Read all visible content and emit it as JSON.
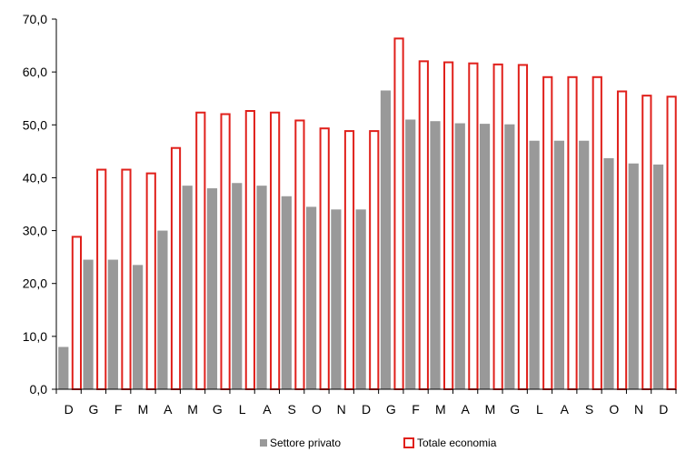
{
  "chart_data": {
    "type": "bar",
    "title": "",
    "xlabel": "",
    "ylabel": "",
    "ylim": [
      0,
      70
    ],
    "yticks": [
      "0,0",
      "10,0",
      "20,0",
      "30,0",
      "40,0",
      "50,0",
      "60,0",
      "70,0"
    ],
    "grid": false,
    "legend_position": "bottom",
    "categories": [
      "D",
      "G",
      "F",
      "M",
      "A",
      "M",
      "G",
      "L",
      "A",
      "S",
      "O",
      "N",
      "D",
      "G",
      "F",
      "M",
      "A",
      "M",
      "G",
      "L",
      "A",
      "S",
      "O",
      "N",
      "D"
    ],
    "series": [
      {
        "name": "Settore privato",
        "color": "#999999",
        "style": "filled",
        "values": [
          8.0,
          24.5,
          24.5,
          23.5,
          30.0,
          38.5,
          38.0,
          39.0,
          38.5,
          36.5,
          34.5,
          34.0,
          34.0,
          56.5,
          51.0,
          50.7,
          50.3,
          50.2,
          50.1,
          47.0,
          47.0,
          47.0,
          43.7,
          42.7,
          42.5
        ]
      },
      {
        "name": "Totale economia",
        "color": "#e0201b",
        "style": "outline",
        "values": [
          29.0,
          41.7,
          41.7,
          41.0,
          45.8,
          52.5,
          52.2,
          52.8,
          52.5,
          51.0,
          49.5,
          49.0,
          49.0,
          66.5,
          62.2,
          62.0,
          61.8,
          61.6,
          61.5,
          59.2,
          59.2,
          59.2,
          56.5,
          55.7,
          55.5
        ]
      }
    ]
  }
}
